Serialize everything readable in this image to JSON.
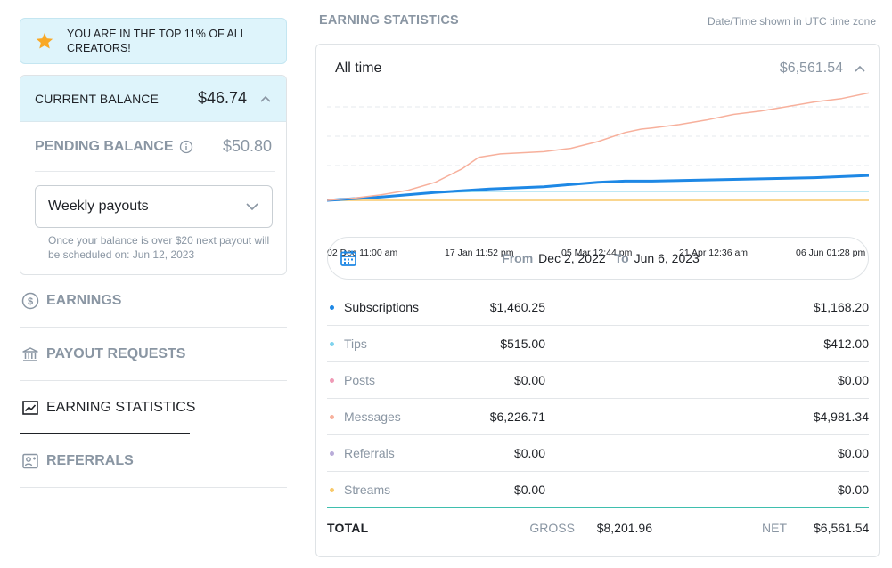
{
  "banner": {
    "text": "YOU ARE IN THE TOP 11% OF ALL CREATORS!",
    "icon": "star-icon"
  },
  "balance": {
    "current_label": "CURRENT BALANCE",
    "current_amount": "$46.74",
    "pending_label": "PENDING BALANCE",
    "pending_amount": "$50.80",
    "payout_option": "Weekly payouts",
    "payout_note": "Once your balance is over $20 next payout will be scheduled on: Jun 12, 2023"
  },
  "nav": [
    {
      "label": "EARNINGS",
      "icon": "dollar-circle-icon",
      "active": false
    },
    {
      "label": "PAYOUT REQUESTS",
      "icon": "bank-icon",
      "active": false
    },
    {
      "label": "EARNING STATISTICS",
      "icon": "chart-line-icon",
      "active": true
    },
    {
      "label": "REFERRALS",
      "icon": "referral-card-icon",
      "active": false
    }
  ],
  "stats": {
    "section_title": "EARNING STATISTICS",
    "timezone_note": "Date/Time shown in UTC time zone",
    "period_title": "All time",
    "period_total": "$6,561.54",
    "range": {
      "from_label": "From",
      "from": "Dec 2, 2022",
      "to_label": "To",
      "to": "Jun 6, 2023"
    },
    "rows": [
      {
        "name": "Subscriptions",
        "gross": "$1,460.25",
        "net": "$1,168.20",
        "color": "#1e88e5",
        "strong": true
      },
      {
        "name": "Tips",
        "gross": "$515.00",
        "net": "$412.00",
        "color": "#7fd3ee",
        "strong": false
      },
      {
        "name": "Posts",
        "gross": "$0.00",
        "net": "$0.00",
        "color": "#ef9ab6",
        "strong": false
      },
      {
        "name": "Messages",
        "gross": "$6,226.71",
        "net": "$4,981.34",
        "color": "#f7b09c",
        "strong": false
      },
      {
        "name": "Referrals",
        "gross": "$0.00",
        "net": "$0.00",
        "color": "#b9acd9",
        "strong": false
      },
      {
        "name": "Streams",
        "gross": "$0.00",
        "net": "$0.00",
        "color": "#f8c96a",
        "strong": false
      }
    ],
    "total": {
      "label": "TOTAL",
      "gross_label": "GROSS",
      "gross": "$8,201.96",
      "net_label": "NET",
      "net": "$6,561.54"
    }
  },
  "chart_data": {
    "type": "line",
    "title": "",
    "xlabel": "",
    "ylabel": "",
    "x_tick_labels": [
      "02 Dec 11:00 am",
      "17 Jan 11:52 pm",
      "05 Mar 12:44 pm",
      "21 Apr 12:36 am",
      "06 Jun 01:28 pm"
    ],
    "grid": "horizontal dashed",
    "legend": "none",
    "series": [
      {
        "color": "#f7b09c",
        "x": [
          0,
          0.05,
          0.1,
          0.15,
          0.2,
          0.25,
          0.28,
          0.32,
          0.4,
          0.45,
          0.5,
          0.55,
          0.58,
          0.6,
          0.65,
          0.7,
          0.75,
          0.8,
          0.85,
          0.9,
          0.95,
          1
        ],
        "y": [
          0,
          2,
          5,
          9,
          16,
          28,
          38,
          41,
          43,
          46,
          52,
          60,
          63,
          64,
          67,
          71,
          76,
          79,
          83,
          87,
          90,
          95
        ]
      },
      {
        "color": "#1e88e5",
        "x": [
          0,
          0.1,
          0.2,
          0.3,
          0.4,
          0.45,
          0.5,
          0.55,
          0.6,
          0.7,
          0.8,
          0.9,
          1
        ],
        "y": [
          0,
          3,
          7,
          10,
          12,
          14,
          16,
          17,
          17,
          18,
          19,
          20,
          22
        ]
      },
      {
        "color": "#7fd3ee",
        "x": [
          0,
          0.1,
          0.2,
          0.3,
          1
        ],
        "y": [
          0,
          3,
          7,
          8,
          8
        ]
      },
      {
        "color": "#f8c96a",
        "x": [
          0,
          1
        ],
        "y": [
          0,
          0
        ]
      }
    ]
  }
}
